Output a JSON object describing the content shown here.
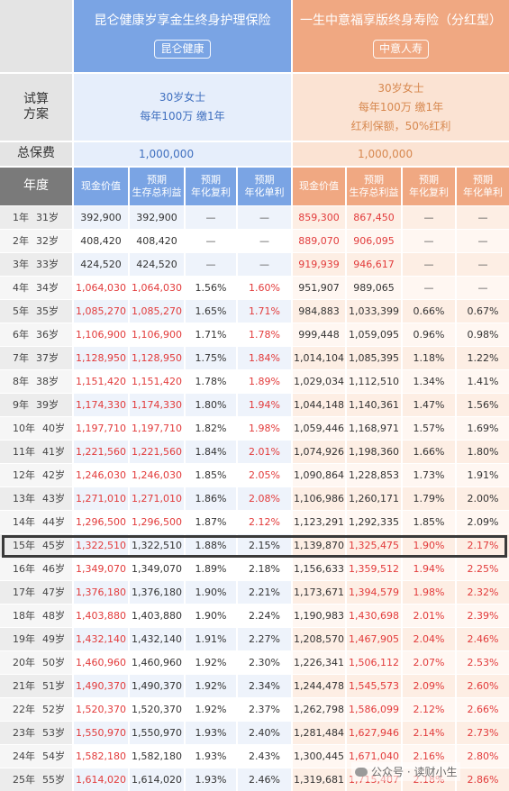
{
  "products": {
    "left": {
      "name": "昆仑健康岁享金生终身护理保险",
      "company": "昆仑健康"
    },
    "right": {
      "name": "一生中意福享版终身寿险（分红型）",
      "company": "中意人寿"
    }
  },
  "labels": {
    "calc": "试算\n方案",
    "premium": "总保费",
    "year": "年度"
  },
  "calc": {
    "left": [
      "30岁女士",
      "每年100万 缴1年"
    ],
    "right": [
      "30岁女士",
      "每年100万 缴1年",
      "红利保额，50%红利"
    ]
  },
  "premium": {
    "left": "1,000,000",
    "right": "1,000,000"
  },
  "headers": {
    "left": [
      "现金价值",
      "预期\n生存总利益",
      "预期\n年化复利",
      "预期\n年化单利"
    ],
    "right": [
      "现金价值",
      "预期\n生存总利益",
      "预期\n年化复利",
      "预期\n年化单利"
    ]
  },
  "rows": [
    {
      "y": "1年",
      "a": "31岁",
      "l": [
        "392,900",
        "392,900",
        "—",
        "—"
      ],
      "r": [
        "859,300",
        "867,450",
        "—",
        "—"
      ]
    },
    {
      "y": "2年",
      "a": "32岁",
      "l": [
        "408,420",
        "408,420",
        "—",
        "—"
      ],
      "r": [
        "889,070",
        "906,095",
        "—",
        "—"
      ]
    },
    {
      "y": "3年",
      "a": "33岁",
      "l": [
        "424,520",
        "424,520",
        "—",
        "—"
      ],
      "r": [
        "919,939",
        "946,617",
        "—",
        "—"
      ]
    },
    {
      "y": "4年",
      "a": "34岁",
      "l": [
        "1,064,030",
        "1,064,030",
        "1.56%",
        "1.60%"
      ],
      "r": [
        "951,907",
        "989,065",
        "—",
        "—"
      ]
    },
    {
      "y": "5年",
      "a": "35岁",
      "l": [
        "1,085,270",
        "1,085,270",
        "1.65%",
        "1.71%"
      ],
      "r": [
        "984,883",
        "1,033,399",
        "0.66%",
        "0.67%"
      ]
    },
    {
      "y": "6年",
      "a": "36岁",
      "l": [
        "1,106,900",
        "1,106,900",
        "1.71%",
        "1.78%"
      ],
      "r": [
        "999,448",
        "1,059,095",
        "0.96%",
        "0.98%"
      ]
    },
    {
      "y": "7年",
      "a": "37岁",
      "l": [
        "1,128,950",
        "1,128,950",
        "1.75%",
        "1.84%"
      ],
      "r": [
        "1,014,104",
        "1,085,395",
        "1.18%",
        "1.22%"
      ]
    },
    {
      "y": "8年",
      "a": "38岁",
      "l": [
        "1,151,420",
        "1,151,420",
        "1.78%",
        "1.89%"
      ],
      "r": [
        "1,029,034",
        "1,112,510",
        "1.34%",
        "1.41%"
      ]
    },
    {
      "y": "9年",
      "a": "39岁",
      "l": [
        "1,174,330",
        "1,174,330",
        "1.80%",
        "1.94%"
      ],
      "r": [
        "1,044,148",
        "1,140,361",
        "1.47%",
        "1.56%"
      ]
    },
    {
      "y": "10年",
      "a": "40岁",
      "l": [
        "1,197,710",
        "1,197,710",
        "1.82%",
        "1.98%"
      ],
      "r": [
        "1,059,446",
        "1,168,971",
        "1.57%",
        "1.69%"
      ]
    },
    {
      "y": "11年",
      "a": "41岁",
      "l": [
        "1,221,560",
        "1,221,560",
        "1.84%",
        "2.01%"
      ],
      "r": [
        "1,074,926",
        "1,198,360",
        "1.66%",
        "1.80%"
      ]
    },
    {
      "y": "12年",
      "a": "42岁",
      "l": [
        "1,246,030",
        "1,246,030",
        "1.85%",
        "2.05%"
      ],
      "r": [
        "1,090,864",
        "1,228,853",
        "1.73%",
        "1.91%"
      ]
    },
    {
      "y": "13年",
      "a": "43岁",
      "l": [
        "1,271,010",
        "1,271,010",
        "1.86%",
        "2.08%"
      ],
      "r": [
        "1,106,986",
        "1,260,171",
        "1.79%",
        "2.00%"
      ]
    },
    {
      "y": "14年",
      "a": "44岁",
      "l": [
        "1,296,500",
        "1,296,500",
        "1.87%",
        "2.12%"
      ],
      "r": [
        "1,123,291",
        "1,292,335",
        "1.85%",
        "2.09%"
      ]
    },
    {
      "y": "15年",
      "a": "45岁",
      "l": [
        "1,322,510",
        "1,322,510",
        "1.88%",
        "2.15%"
      ],
      "r": [
        "1,139,870",
        "1,325,475",
        "1.90%",
        "2.17%"
      ]
    },
    {
      "y": "16年",
      "a": "46岁",
      "l": [
        "1,349,070",
        "1,349,070",
        "1.89%",
        "2.18%"
      ],
      "r": [
        "1,156,633",
        "1,359,512",
        "1.94%",
        "2.25%"
      ]
    },
    {
      "y": "17年",
      "a": "47岁",
      "l": [
        "1,376,180",
        "1,376,180",
        "1.90%",
        "2.21%"
      ],
      "r": [
        "1,173,671",
        "1,394,579",
        "1.98%",
        "2.32%"
      ]
    },
    {
      "y": "18年",
      "a": "48岁",
      "l": [
        "1,403,880",
        "1,403,880",
        "1.90%",
        "2.24%"
      ],
      "r": [
        "1,190,983",
        "1,430,698",
        "2.01%",
        "2.39%"
      ]
    },
    {
      "y": "19年",
      "a": "49岁",
      "l": [
        "1,432,140",
        "1,432,140",
        "1.91%",
        "2.27%"
      ],
      "r": [
        "1,208,570",
        "1,467,905",
        "2.04%",
        "2.46%"
      ]
    },
    {
      "y": "20年",
      "a": "50岁",
      "l": [
        "1,460,960",
        "1,460,960",
        "1.92%",
        "2.30%"
      ],
      "r": [
        "1,226,341",
        "1,506,112",
        "2.07%",
        "2.53%"
      ]
    },
    {
      "y": "21年",
      "a": "51岁",
      "l": [
        "1,490,370",
        "1,490,370",
        "1.92%",
        "2.34%"
      ],
      "r": [
        "1,244,478",
        "1,545,573",
        "2.09%",
        "2.60%"
      ]
    },
    {
      "y": "22年",
      "a": "52岁",
      "l": [
        "1,520,370",
        "1,520,370",
        "1.92%",
        "2.37%"
      ],
      "r": [
        "1,262,798",
        "1,586,099",
        "2.12%",
        "2.66%"
      ]
    },
    {
      "y": "23年",
      "a": "53岁",
      "l": [
        "1,550,970",
        "1,550,970",
        "1.93%",
        "2.40%"
      ],
      "r": [
        "1,281,484",
        "1,627,946",
        "2.14%",
        "2.73%"
      ]
    },
    {
      "y": "24年",
      "a": "54岁",
      "l": [
        "1,582,180",
        "1,582,180",
        "1.93%",
        "2.43%"
      ],
      "r": [
        "1,300,445",
        "1,671,040",
        "2.16%",
        "2.80%"
      ]
    },
    {
      "y": "25年",
      "a": "55岁",
      "l": [
        "1,614,020",
        "1,614,020",
        "1.93%",
        "2.46%"
      ],
      "r": [
        "1,319,681",
        "1,715,407",
        "2.18%",
        "2.86%"
      ]
    }
  ],
  "highlight": {
    "row_label": "15年"
  },
  "watermark": "公众号 · 读财小生",
  "colors": {
    "left_header": "#7aa4e4",
    "right_header": "#f0a882",
    "highlight_value": "#e23b3b",
    "highlight_box": "#3a3a3a"
  }
}
